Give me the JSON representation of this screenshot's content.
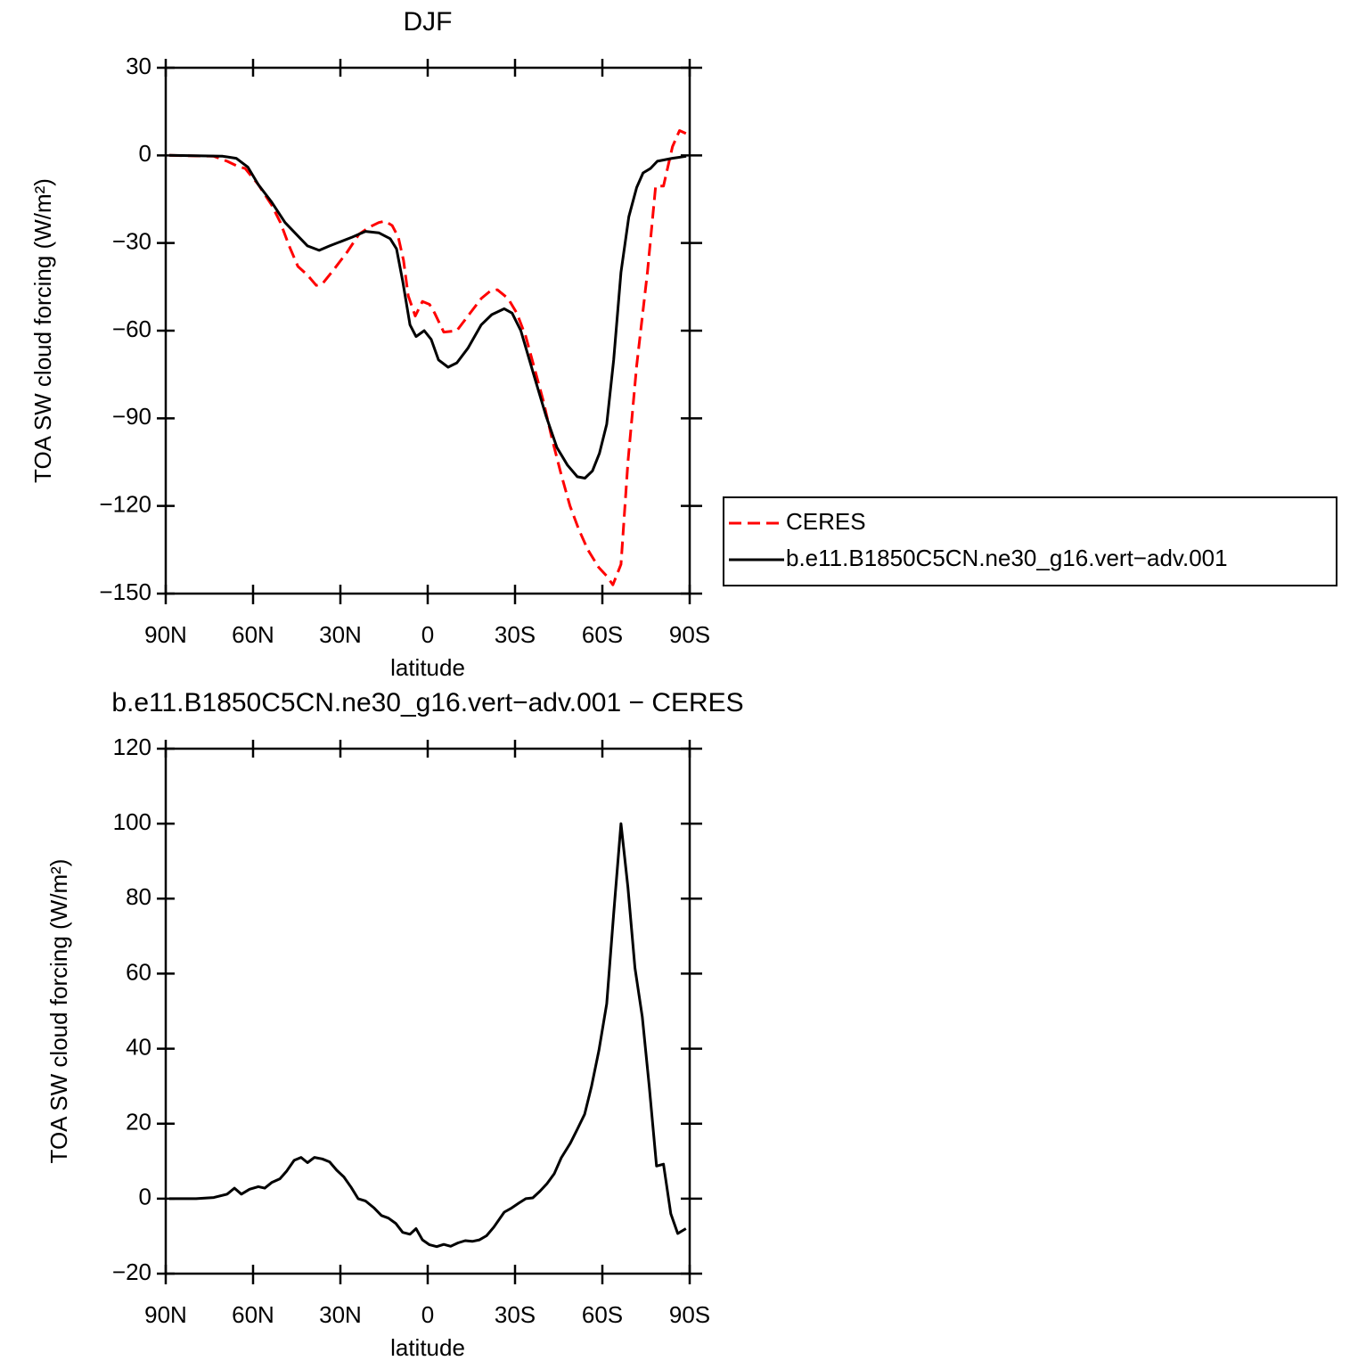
{
  "chart_data": [
    {
      "type": "line",
      "title": "DJF",
      "x_label": "latitude",
      "y_label": "TOA SW cloud forcing (W/m²)",
      "xlim": [
        90,
        -90
      ],
      "xticks": [
        {
          "value": 90,
          "label": "90N"
        },
        {
          "value": 60,
          "label": "60N"
        },
        {
          "value": 30,
          "label": "30N"
        },
        0,
        {
          "value": -30,
          "label": "30S"
        },
        {
          "value": -60,
          "label": "60S"
        },
        {
          "value": -90,
          "label": "90S"
        }
      ],
      "ylim": [
        -150,
        30
      ],
      "yticks": [
        30,
        0,
        {
          "value": -30,
          "label": "−30"
        },
        {
          "value": -60,
          "label": "−60"
        },
        {
          "value": -90,
          "label": "−90"
        },
        {
          "value": -120,
          "label": "−120"
        },
        {
          "value": -150,
          "label": "−150"
        }
      ],
      "legend": "right",
      "series": [
        {
          "name": "CERES",
          "color": "#ff0000",
          "linestyle": "dashed",
          "x": [
            88.8,
            73.5,
            68.9,
            65.8,
            62.7,
            58.2,
            53.6,
            50.6,
            47.6,
            44.6,
            41.3,
            38.3,
            36.2,
            32.2,
            27.6,
            23.6,
            19.9,
            16.8,
            14.7,
            12.2,
            10.1,
            8.3,
            6.7,
            4.3,
            1.8,
            -0.6,
            -2.4,
            -5.5,
            -10,
            -13.8,
            -18.4,
            -21.4,
            -23.9,
            -27.6,
            -30.6,
            -33.7,
            -36.7,
            -39.7,
            -42.7,
            -45.8,
            -48.9,
            -51.9,
            -55,
            -58.7,
            -61.5,
            -63.6,
            -66.4,
            -68.8,
            -71.8,
            -75.5,
            -78.3,
            -81,
            -84.1,
            -86.5,
            -88.7
          ],
          "values": [
            0,
            -0.3,
            -2,
            -3.5,
            -4.5,
            -10,
            -17,
            -23,
            -31,
            -38,
            -41,
            -44.5,
            -44,
            -39,
            -33,
            -27,
            -24.5,
            -23,
            -22.5,
            -24,
            -28,
            -36,
            -48,
            -55,
            -50,
            -51,
            -54,
            -60.5,
            -60,
            -55,
            -49,
            -46.5,
            -46,
            -49,
            -54,
            -62,
            -73,
            -84,
            -97,
            -109,
            -120,
            -128,
            -135,
            -141,
            -144,
            -147,
            -140,
            -105,
            -72,
            -40,
            -10.5,
            -10.5,
            3,
            8.5,
            7.5
          ]
        },
        {
          "name": "b.e11.B1850C5CN.ne30_g16.vert−adv.001",
          "color": "#000000",
          "linestyle": "solid",
          "x": [
            88.8,
            70.4,
            65.8,
            61.8,
            58.2,
            53.6,
            49,
            41.3,
            37.3,
            33.7,
            26,
            21.4,
            16.8,
            12.9,
            10.7,
            8.6,
            6.1,
            4,
            1.2,
            -1.2,
            -3.7,
            -7,
            -10,
            -13.8,
            -18.4,
            -22,
            -26.3,
            -29,
            -32,
            -36.7,
            -40.6,
            -44.4,
            -48,
            -51.4,
            -54,
            -56.6,
            -59,
            -61.5,
            -63.9,
            -66.4,
            -69.1,
            -71.8,
            -74,
            -76.5,
            -78.9,
            -84,
            -88.8
          ],
          "values": [
            0,
            -0.3,
            -1,
            -4,
            -10,
            -16,
            -23,
            -31,
            -32.5,
            -31,
            -28,
            -26,
            -26.5,
            -28.5,
            -32,
            -43,
            -58,
            -62,
            -60,
            -63,
            -70,
            -72.5,
            -71,
            -66,
            -58,
            -54.5,
            -52.5,
            -54,
            -60,
            -76,
            -89,
            -100,
            -106,
            -110,
            -110.5,
            -108,
            -102,
            -92,
            -70,
            -40,
            -21,
            -11,
            -6,
            -4.5,
            -2,
            -1,
            -0.3
          ]
        }
      ]
    },
    {
      "type": "line",
      "title": "b.e11.B1850C5CN.ne30_g16.vert−adv.001 − CERES",
      "x_label": "latitude",
      "y_label": "TOA SW cloud forcing (W/m²)",
      "xlim": [
        90,
        -90
      ],
      "xticks": [
        {
          "value": 90,
          "label": "90N"
        },
        {
          "value": 60,
          "label": "60N"
        },
        {
          "value": 30,
          "label": "30N"
        },
        0,
        {
          "value": -30,
          "label": "30S"
        },
        {
          "value": -60,
          "label": "60S"
        },
        {
          "value": -90,
          "label": "90S"
        }
      ],
      "ylim": [
        -20,
        120
      ],
      "yticks": [
        120,
        100,
        80,
        60,
        40,
        20,
        0,
        {
          "value": -20,
          "label": "−20"
        }
      ],
      "color": "#000000",
      "x": [
        88.8,
        79.6,
        73.5,
        68.9,
        66.4,
        64,
        61.2,
        58.2,
        56,
        53.6,
        50.8,
        48.4,
        45.9,
        43.5,
        41.3,
        38.9,
        36.2,
        33.7,
        31.3,
        28.8,
        26.3,
        23.9,
        21.4,
        18.4,
        15.9,
        13.5,
        11,
        8.6,
        6.1,
        4,
        1.8,
        -0.6,
        -3.1,
        -5.5,
        -7.9,
        -10.4,
        -12.9,
        -15.3,
        -17.8,
        -20.2,
        -22.7,
        -26.3,
        -28.8,
        -31.3,
        -33.7,
        -36.1,
        -38.6,
        -41,
        -43.5,
        -45.9,
        -49,
        -51.4,
        -53.9,
        -56.3,
        -58.8,
        -61.5,
        -63.9,
        -66.4,
        -68.8,
        -71.2,
        -73.7,
        -76.1,
        -78.6,
        -81,
        -83.5,
        -85.9,
        -88.7
      ],
      "values": [
        0,
        0,
        0.3,
        1.2,
        2.8,
        1.2,
        2.5,
        3.2,
        2.8,
        4.3,
        5.3,
        7.4,
        10.2,
        11,
        9.6,
        11,
        10.6,
        9.8,
        7.6,
        5.8,
        3,
        0,
        -0.6,
        -2.5,
        -4.5,
        -5.2,
        -6.6,
        -9,
        -9.5,
        -8,
        -11,
        -12.3,
        -12.8,
        -12.2,
        -12.7,
        -11.8,
        -11.2,
        -11.4,
        -11,
        -9.9,
        -7.6,
        -3.6,
        -2.5,
        -1.2,
        0,
        0.2,
        2,
        4,
        6.7,
        10.9,
        14.8,
        18.5,
        22.5,
        30,
        39.5,
        52,
        76,
        100,
        83,
        61.5,
        48.5,
        30,
        8.7,
        9.2,
        -4,
        -9.3,
        -8
      ]
    }
  ]
}
